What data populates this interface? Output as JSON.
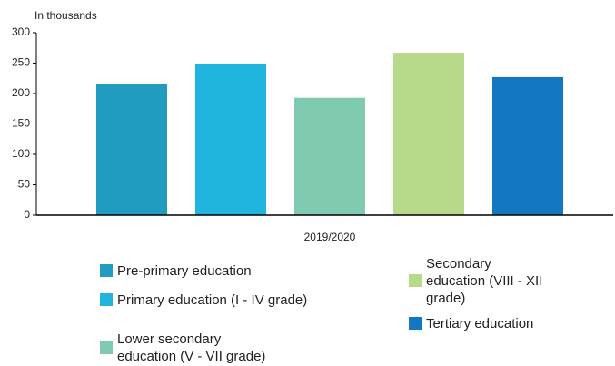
{
  "chart_data": {
    "type": "bar",
    "y_label": "In thousands",
    "categories": [
      "2019/2020"
    ],
    "series": [
      {
        "name": "Pre-primary education",
        "color": "#219bbf",
        "values": [
          216
        ]
      },
      {
        "name": "Primary education (I - IV grade)",
        "color": "#1fb5de",
        "values": [
          248
        ]
      },
      {
        "name": "Lower secondary education (V - VII grade)",
        "color": "#80cbb0",
        "values": [
          193
        ]
      },
      {
        "name": "Secondary education (VIII - XII grade)",
        "color": "#b7d98a",
        "values": [
          267
        ]
      },
      {
        "name": "Tertiary education",
        "color": "#1478c0",
        "values": [
          227
        ]
      }
    ],
    "ylim": [
      0,
      300
    ],
    "yticks": [
      0,
      50,
      100,
      150,
      200,
      250,
      300
    ],
    "tick_marks": true
  }
}
